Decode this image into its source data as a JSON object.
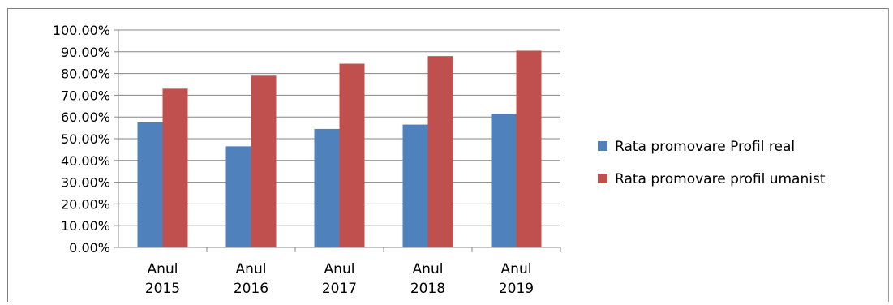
{
  "chart_data": {
    "type": "bar",
    "title": "",
    "xlabel": "",
    "ylabel": "",
    "ylim": [
      0,
      1
    ],
    "yticks": [
      "0.00%",
      "10.00%",
      "20.00%",
      "30.00%",
      "40.00%",
      "50.00%",
      "60.00%",
      "70.00%",
      "80.00%",
      "90.00%",
      "100.00%"
    ],
    "categories": [
      [
        "Anul",
        "2015"
      ],
      [
        "Anul",
        "2016"
      ],
      [
        "Anul",
        "2017"
      ],
      [
        "Anul",
        "2018"
      ],
      [
        "Anul",
        "2019"
      ]
    ],
    "series": [
      {
        "name": "Rata promovare Profil real",
        "color": "#4f81bd",
        "values": [
          0.575,
          0.465,
          0.545,
          0.565,
          0.615
        ]
      },
      {
        "name": "Rata promovare profil umanist",
        "color": "#c0504d",
        "values": [
          0.73,
          0.79,
          0.845,
          0.88,
          0.905
        ]
      }
    ],
    "grid": true,
    "legend": "right"
  }
}
